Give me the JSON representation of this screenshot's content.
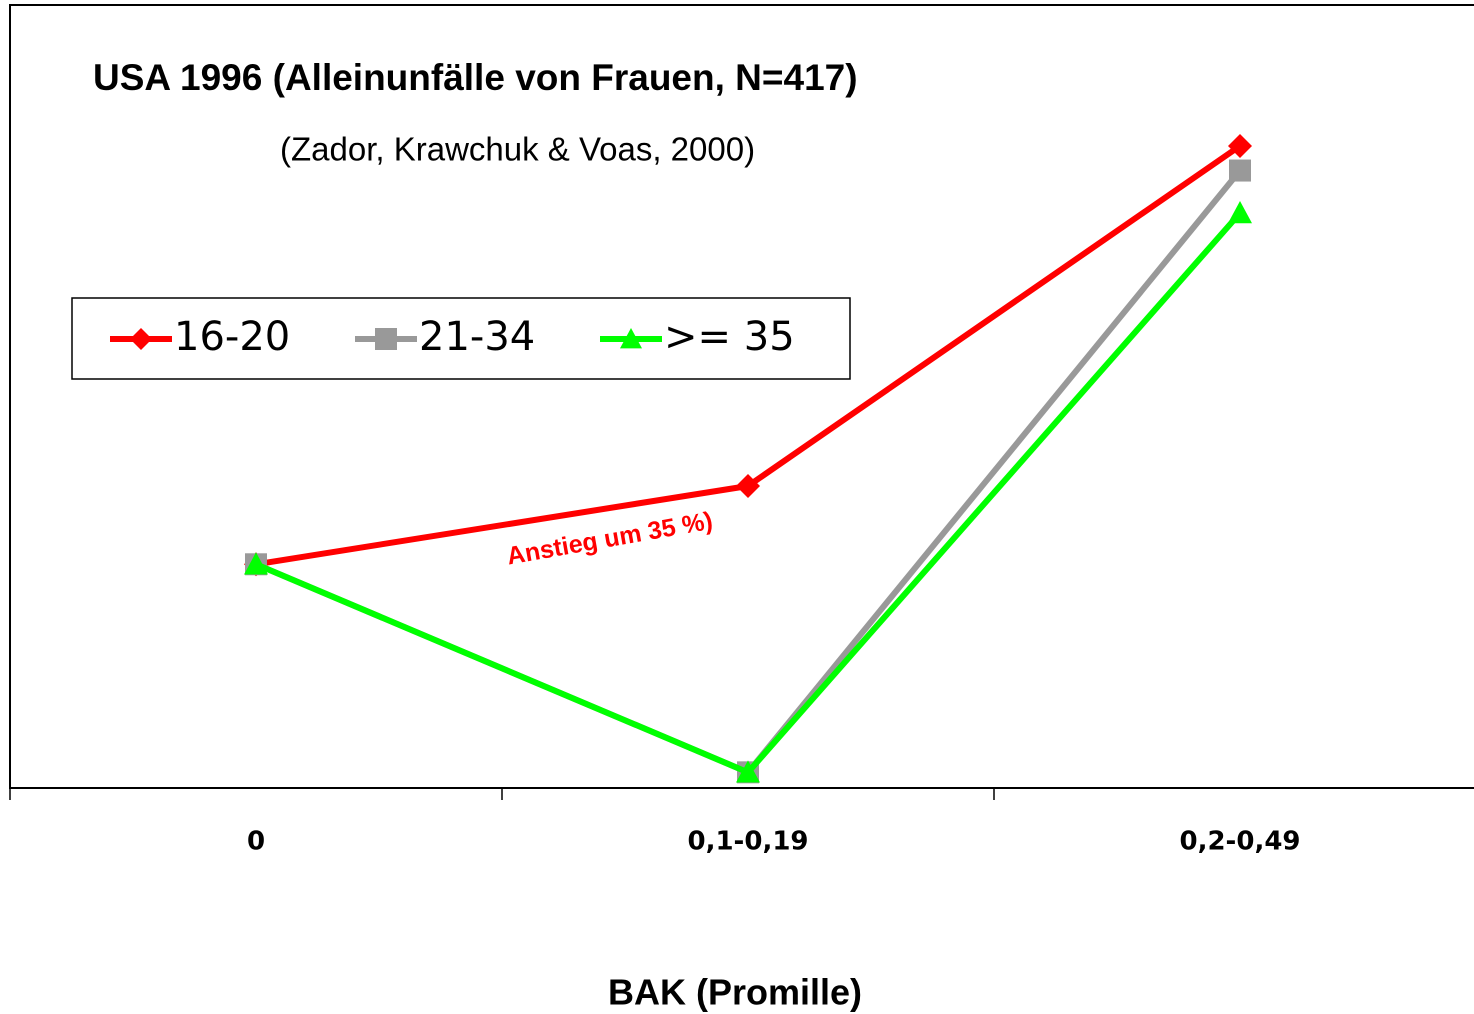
{
  "chart_data": {
    "type": "line",
    "title": "USA 1996 (Alleinunfälle von Frauen, N=417)",
    "subtitle": "(Zador, Krawchuk & Voas, 2000)",
    "x_label": "BAK (Promille)",
    "annotation": "Anstieg um 35 %)",
    "categories": [
      "0",
      "0,1-0,19",
      "0,2-0,49"
    ],
    "series": [
      {
        "name": "16-20",
        "color": "#ff0000",
        "marker": "diamond",
        "values": [
          1,
          1.35,
          2.87
        ]
      },
      {
        "name": "21-34",
        "color": "#999999",
        "marker": "square",
        "values": [
          1,
          0.07,
          2.76
        ]
      },
      {
        "name": ">= 35",
        "color": "#00ff00",
        "marker": "triangle",
        "values": [
          1,
          0.07,
          2.57
        ]
      }
    ],
    "ylim": [
      0,
      3.5
    ],
    "legend": "left"
  }
}
